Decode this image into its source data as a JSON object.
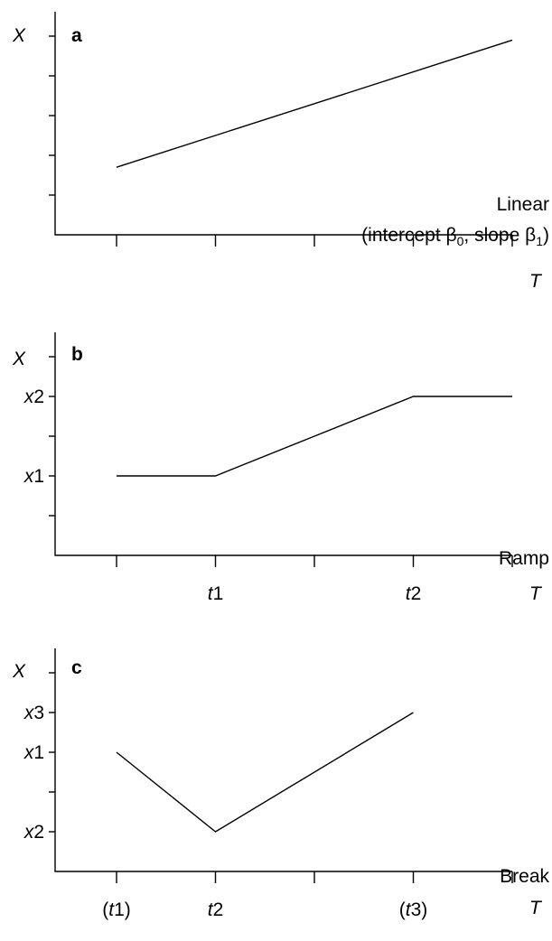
{
  "chart_data": [
    {
      "type": "line",
      "panel_label": "a",
      "ylabel": "X",
      "xlabel": "T",
      "x_ticks": [
        0,
        1,
        2,
        3,
        4
      ],
      "x_tick_labels": [],
      "y_ticks": [
        1,
        2,
        3,
        4,
        5
      ],
      "y_tick_labels": [],
      "xlim": [
        -0.6,
        4
      ],
      "ylim": [
        0,
        5.3
      ],
      "series": [
        {
          "x": [
            0,
            4
          ],
          "y": [
            1.7,
            4.9
          ]
        }
      ],
      "annotation": [
        "Linear",
        "(intercept β",
        "0",
        ", slope β",
        "1",
        ")"
      ]
    },
    {
      "type": "line",
      "panel_label": "b",
      "ylabel": "X",
      "xlabel": "T",
      "x_ticks": [
        0,
        1,
        2,
        3,
        4
      ],
      "x_tick_labels": [
        "",
        "t1",
        "",
        "t2",
        ""
      ],
      "y_ticks": [
        1,
        2,
        3,
        4,
        5
      ],
      "y_tick_labels": [
        "",
        "x1",
        "",
        "x2",
        ""
      ],
      "xlim": [
        -0.6,
        4
      ],
      "ylim": [
        0,
        5.3
      ],
      "series": [
        {
          "x": [
            0,
            1,
            3,
            4
          ],
          "y": [
            2,
            2,
            4,
            4
          ]
        }
      ],
      "annotation": "Ramp"
    },
    {
      "type": "line",
      "panel_label": "c",
      "ylabel": "X",
      "xlabel": "T",
      "x_ticks": [
        0,
        1,
        2,
        3,
        4
      ],
      "x_tick_labels": [
        "(t1)",
        "t2",
        "",
        "(t3)",
        ""
      ],
      "y_ticks": [
        1,
        2,
        3,
        4,
        5
      ],
      "y_tick_labels": [
        "x2",
        "",
        "x1",
        "x3",
        ""
      ],
      "xlim": [
        -0.6,
        4
      ],
      "ylim": [
        0,
        5.3
      ],
      "series": [
        {
          "x": [
            0,
            1,
            3
          ],
          "y": [
            3,
            1,
            4
          ]
        }
      ],
      "annotation": "Break"
    }
  ]
}
